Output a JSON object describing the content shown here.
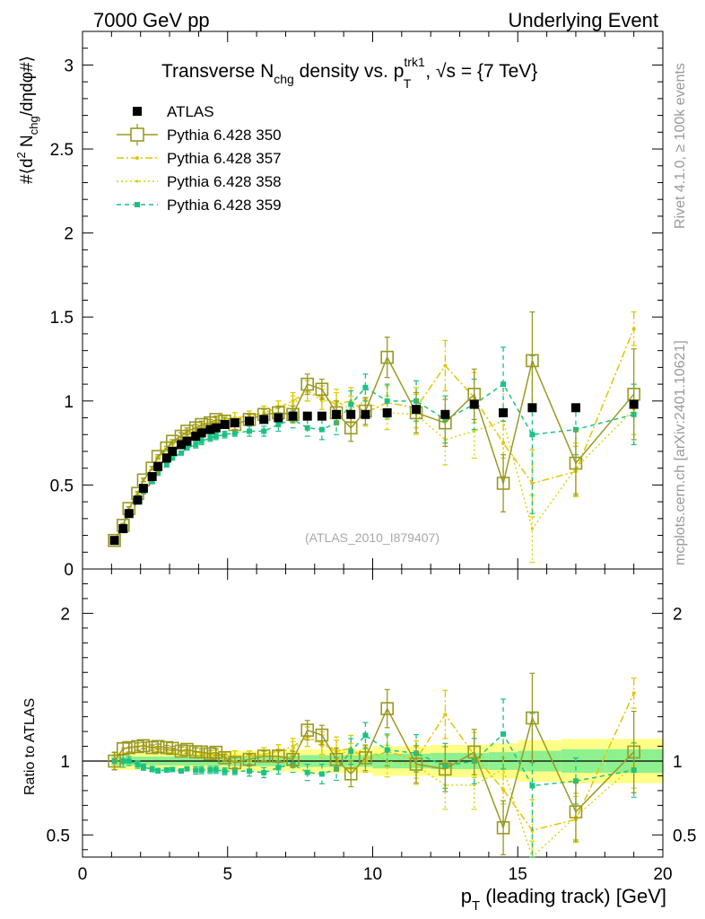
{
  "header": {
    "left": "7000 GeV pp",
    "right": "Underlying Event"
  },
  "side_labels": {
    "rivet": "Rivet 4.1.0, ≥ 100k events",
    "mcplots": "mcplots.cern.ch [arXiv:2401.10621]"
  },
  "chart_data": {
    "type": "scatter",
    "title_parts": {
      "pre": "Transverse N",
      "sub1": "chg",
      "mid": " density vs. p",
      "sup": "trk1",
      "sub2": "T",
      "post": ", √s = {7 TeV}"
    },
    "ylabel_top_parts": {
      "a": "#⟨d",
      "sup": "2",
      "b": " N",
      "sub": "chg",
      "c": "/dηdφ#⟩"
    },
    "ylabel_bottom": "Ratio to ATLAS",
    "xlabel_parts": {
      "a": "p",
      "sub": "T",
      "b": " (leading track) [GeV]"
    },
    "watermark": "(ATLAS_2010_I879407)",
    "xlim": [
      0,
      20
    ],
    "ylim_top": [
      0,
      3.2
    ],
    "ylim_ratio": [
      0.35,
      2.3
    ],
    "x_ticks": [
      "0",
      "5",
      "10",
      "15",
      "20"
    ],
    "y_ticks_top": [
      "0",
      "0.5",
      "1",
      "1.5",
      "2",
      "2.5",
      "3"
    ],
    "y_ticks_ratio_left": [
      "0.5",
      "1",
      "2"
    ],
    "y_ticks_ratio_right": [
      "0.5",
      "1",
      "2"
    ],
    "colors": {
      "atlas": "#000000",
      "p350": "#999922",
      "p357": "#e6c300",
      "p358": "#d9d200",
      "p359": "#1bc284",
      "band_inner": "#8ef08e",
      "band_outer": "#ffff88"
    },
    "x": [
      1.1,
      1.4,
      1.6,
      1.9,
      2.1,
      2.4,
      2.6,
      2.9,
      3.1,
      3.4,
      3.6,
      3.9,
      4.1,
      4.4,
      4.6,
      4.9,
      5.25,
      5.75,
      6.25,
      6.75,
      7.25,
      7.75,
      8.25,
      8.75,
      9.25,
      9.75,
      10.5,
      11.5,
      12.5,
      13.5,
      14.5,
      15.5,
      17.0,
      19.0
    ],
    "series": [
      {
        "name": "ATLAS",
        "style": "atlas",
        "values": [
          0.17,
          0.24,
          0.33,
          0.41,
          0.48,
          0.55,
          0.61,
          0.66,
          0.7,
          0.74,
          0.76,
          0.79,
          0.81,
          0.83,
          0.84,
          0.86,
          0.87,
          0.88,
          0.89,
          0.9,
          0.91,
          0.91,
          0.91,
          0.92,
          0.92,
          0.92,
          0.93,
          0.95,
          0.92,
          0.98,
          0.93,
          0.96,
          0.96,
          0.98
        ],
        "errors": [
          0,
          0,
          0,
          0,
          0,
          0,
          0,
          0,
          0,
          0,
          0,
          0,
          0,
          0,
          0,
          0,
          0,
          0,
          0,
          0,
          0,
          0,
          0,
          0,
          0,
          0,
          0.01,
          0.01,
          0.02,
          0.02,
          0.02,
          0.02,
          0.02,
          0.02
        ]
      },
      {
        "name": "Pythia 6.428 350",
        "style": "p350",
        "values": [
          0.17,
          0.26,
          0.36,
          0.45,
          0.53,
          0.6,
          0.67,
          0.72,
          0.76,
          0.79,
          0.82,
          0.84,
          0.86,
          0.87,
          0.89,
          0.88,
          0.86,
          0.89,
          0.92,
          0.93,
          0.92,
          1.1,
          1.07,
          0.93,
          0.84,
          0.94,
          1.26,
          0.93,
          0.87,
          1.04,
          0.51,
          1.24,
          0.63,
          1.04
        ],
        "errors": [
          0.01,
          0.01,
          0.01,
          0.01,
          0.01,
          0.01,
          0.01,
          0.01,
          0.01,
          0.02,
          0.02,
          0.02,
          0.02,
          0.02,
          0.02,
          0.02,
          0.03,
          0.03,
          0.03,
          0.04,
          0.05,
          0.06,
          0.06,
          0.07,
          0.08,
          0.08,
          0.12,
          0.12,
          0.14,
          0.15,
          0.17,
          0.29,
          0.19,
          0.27
        ]
      },
      {
        "name": "Pythia 6.428 357",
        "style": "p357",
        "values": [
          0.17,
          0.26,
          0.36,
          0.45,
          0.53,
          0.6,
          0.66,
          0.71,
          0.75,
          0.79,
          0.81,
          0.84,
          0.85,
          0.86,
          0.88,
          0.89,
          0.9,
          0.91,
          0.93,
          0.96,
          1.0,
          1.06,
          1.02,
          0.98,
          1.0,
          0.93,
          0.99,
          0.96,
          1.21,
          1.02,
          0.75,
          0.51,
          0.58,
          1.43
        ],
        "errors": [
          0.01,
          0.01,
          0.01,
          0.01,
          0.01,
          0.01,
          0.01,
          0.01,
          0.01,
          0.02,
          0.02,
          0.02,
          0.02,
          0.02,
          0.02,
          0.02,
          0.03,
          0.03,
          0.04,
          0.04,
          0.05,
          0.06,
          0.07,
          0.07,
          0.08,
          0.08,
          0.1,
          0.12,
          0.15,
          0.15,
          0.2,
          0.2,
          0.15,
          0.1
        ]
      },
      {
        "name": "Pythia 6.428 358",
        "style": "p358",
        "values": [
          0.17,
          0.26,
          0.36,
          0.45,
          0.53,
          0.6,
          0.66,
          0.71,
          0.75,
          0.79,
          0.81,
          0.84,
          0.85,
          0.86,
          0.88,
          0.89,
          0.9,
          0.91,
          0.93,
          0.96,
          0.98,
          1.06,
          1.0,
          1.0,
          0.95,
          1.0,
          0.93,
          0.92,
          0.77,
          0.82,
          0.88,
          0.24,
          0.6,
          0.95
        ],
        "errors": [
          0.01,
          0.01,
          0.01,
          0.01,
          0.01,
          0.01,
          0.01,
          0.01,
          0.01,
          0.02,
          0.02,
          0.02,
          0.02,
          0.02,
          0.02,
          0.02,
          0.03,
          0.03,
          0.04,
          0.04,
          0.05,
          0.06,
          0.07,
          0.07,
          0.08,
          0.08,
          0.1,
          0.12,
          0.15,
          0.16,
          0.22,
          0.2,
          0.15,
          0.15
        ]
      },
      {
        "name": "Pythia 6.428 359",
        "style": "p359",
        "values": [
          0.17,
          0.24,
          0.33,
          0.4,
          0.46,
          0.52,
          0.57,
          0.62,
          0.66,
          0.69,
          0.72,
          0.74,
          0.76,
          0.78,
          0.79,
          0.8,
          0.81,
          0.82,
          0.82,
          0.86,
          0.89,
          0.84,
          0.83,
          0.87,
          0.98,
          1.08,
          1.0,
          1.0,
          0.89,
          0.98,
          1.1,
          0.8,
          0.83,
          0.92
        ],
        "errors": [
          0.01,
          0.01,
          0.01,
          0.01,
          0.01,
          0.01,
          0.01,
          0.01,
          0.01,
          0.01,
          0.01,
          0.02,
          0.02,
          0.02,
          0.02,
          0.02,
          0.02,
          0.03,
          0.03,
          0.04,
          0.05,
          0.05,
          0.06,
          0.07,
          0.08,
          0.08,
          0.1,
          0.12,
          0.14,
          0.15,
          0.22,
          0.47,
          0.15,
          0.18
        ]
      }
    ],
    "band_edges": [
      1.0,
      5.0,
      7.5,
      10.0,
      12.0,
      14.0,
      15.0,
      16.5,
      18.0,
      20.0
    ],
    "band_inner": [
      0.03,
      0.035,
      0.04,
      0.05,
      0.055,
      0.06,
      0.07,
      0.08,
      0.08
    ],
    "band_outer": [
      0.06,
      0.07,
      0.08,
      0.1,
      0.11,
      0.12,
      0.14,
      0.15,
      0.15
    ]
  }
}
